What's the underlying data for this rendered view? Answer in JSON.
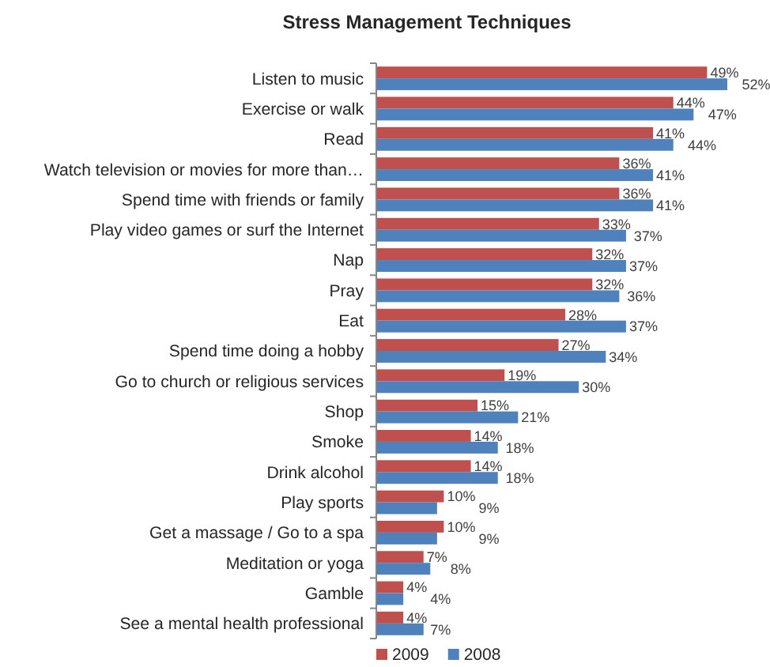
{
  "chart_data": {
    "type": "bar",
    "orientation": "horizontal",
    "title": "Stress Management Techniques",
    "categories": [
      "Listen to music",
      "Exercise or walk",
      "Read",
      "Watch television or movies for more than…",
      "Spend time with friends or family",
      "Play video games or surf the Internet",
      "Nap",
      "Pray",
      "Eat",
      "Spend time doing a hobby",
      "Go to church or religious services",
      "Shop",
      "Smoke",
      "Drink alcohol",
      "Play sports",
      "Get a massage / Go to a spa",
      "Meditation or yoga",
      "Gamble",
      "See a mental health professional"
    ],
    "series": [
      {
        "name": "2009",
        "color": "#c0504d",
        "values": [
          49,
          44,
          41,
          36,
          36,
          33,
          32,
          32,
          28,
          27,
          19,
          15,
          14,
          14,
          10,
          10,
          7,
          4,
          4
        ],
        "value_labels": [
          "49%",
          "44%",
          "41%",
          "36%",
          "36%",
          "33%",
          "32%",
          "32%",
          "28%",
          "27%",
          "19%",
          "15%",
          "14%",
          "14%",
          "10%",
          "10%",
          "7%",
          "4%",
          "4%"
        ]
      },
      {
        "name": "2008",
        "color": "#4f81bd",
        "values": [
          52,
          47,
          44,
          41,
          41,
          37,
          37,
          36,
          37,
          34,
          30,
          21,
          18,
          18,
          9,
          9,
          8,
          4,
          7
        ],
        "value_labels": [
          "52%",
          "47%",
          "44%",
          "41%",
          "41%",
          "37%",
          "37%",
          "36%",
          "37%",
          "34%",
          "30%",
          "21%",
          "18%",
          "18%",
          "9%",
          "9%",
          "8%",
          "4%",
          "7%"
        ]
      }
    ],
    "legend": "bottom"
  }
}
